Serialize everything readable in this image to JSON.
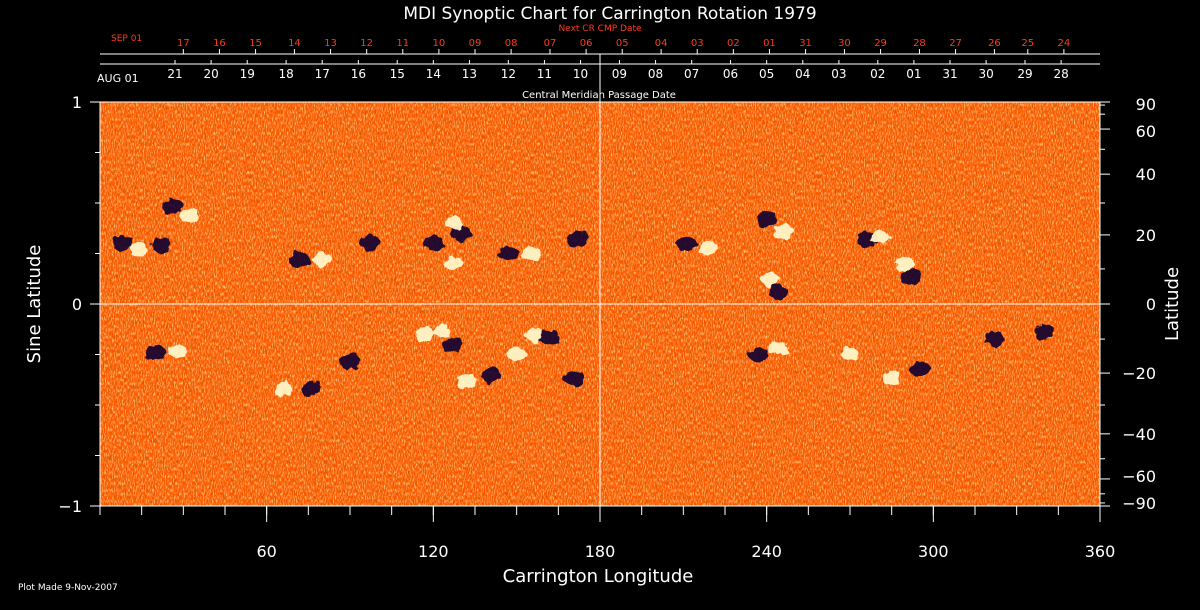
{
  "colors": {
    "background": "#000000",
    "text": "#ffffff",
    "next_dates": "#ff3b1a",
    "map_base": "#ff5a00",
    "positive_polarity": "#fff6c8",
    "negative_polarity": "#0b0630"
  },
  "chart_data": {
    "type": "heatmap",
    "title": "MDI Synoptic Chart for Carrington Rotation 1979",
    "xlabel": "Carrington Longitude",
    "ylabel_left": "Sine Latitude",
    "ylabel_right": "Latitude",
    "top_axis_label": "Central Meridian Passage Date",
    "next_axis_label": "Next CR CMP Date",
    "footer": "Plot Made  9-Nov-2007",
    "xlim": [
      0,
      360
    ],
    "ylim": [
      -1,
      1
    ],
    "x_tick_labels": [
      {
        "value": 60,
        "text": "60"
      },
      {
        "value": 120,
        "text": "120"
      },
      {
        "value": 180,
        "text": "180"
      },
      {
        "value": 240,
        "text": "240"
      },
      {
        "value": 300,
        "text": "300"
      },
      {
        "value": 360,
        "text": "360"
      }
    ],
    "x_minor_ticks": [
      0,
      15,
      30,
      45,
      60,
      75,
      90,
      105,
      120,
      135,
      150,
      165,
      180,
      195,
      210,
      225,
      240,
      255,
      270,
      285,
      300,
      315,
      330,
      345,
      360
    ],
    "y_left_ticks": [
      {
        "value": 1,
        "text": "1"
      },
      {
        "value": 0,
        "text": "0"
      },
      {
        "value": -1,
        "text": "−1"
      }
    ],
    "y_left_minor_ticks": [
      0.75,
      0.5,
      0.25,
      -0.25,
      -0.5,
      -0.75
    ],
    "latitude_ticks": [
      {
        "deg": 90,
        "text": "90"
      },
      {
        "deg": 60,
        "text": "60"
      },
      {
        "deg": 40,
        "text": "40"
      },
      {
        "deg": 20,
        "text": "20"
      },
      {
        "deg": 0,
        "text": "0"
      },
      {
        "deg": -20,
        "text": "−20"
      },
      {
        "deg": -40,
        "text": "−40"
      },
      {
        "deg": -60,
        "text": "−60"
      },
      {
        "deg": -90,
        "text": "−90"
      }
    ],
    "latitude_minor_ticks": [
      80,
      70,
      50,
      30,
      10,
      -10,
      -30,
      -50,
      -70,
      -80
    ],
    "cmp_date_start_label": "AUG 01",
    "cmp_dates": [
      {
        "lon": 27,
        "text": "21"
      },
      {
        "lon": 40,
        "text": "20"
      },
      {
        "lon": 53,
        "text": "19"
      },
      {
        "lon": 67,
        "text": "18"
      },
      {
        "lon": 80,
        "text": "17"
      },
      {
        "lon": 93,
        "text": "16"
      },
      {
        "lon": 107,
        "text": "15"
      },
      {
        "lon": 120,
        "text": "14"
      },
      {
        "lon": 133,
        "text": "13"
      },
      {
        "lon": 147,
        "text": "12"
      },
      {
        "lon": 160,
        "text": "11"
      },
      {
        "lon": 173,
        "text": "10"
      },
      {
        "lon": 187,
        "text": "09"
      },
      {
        "lon": 200,
        "text": "08"
      },
      {
        "lon": 213,
        "text": "07"
      },
      {
        "lon": 227,
        "text": "06"
      },
      {
        "lon": 240,
        "text": "05"
      },
      {
        "lon": 253,
        "text": "04"
      },
      {
        "lon": 266,
        "text": "03"
      },
      {
        "lon": 280,
        "text": "02"
      },
      {
        "lon": 293,
        "text": "01"
      },
      {
        "lon": 306,
        "text": "31"
      },
      {
        "lon": 319,
        "text": "30"
      },
      {
        "lon": 333,
        "text": "29"
      },
      {
        "lon": 346,
        "text": "28"
      }
    ],
    "next_date_start_label": "SEP 01",
    "next_dates": [
      {
        "lon": 30,
        "text": "17"
      },
      {
        "lon": 43,
        "text": "16"
      },
      {
        "lon": 56,
        "text": "15"
      },
      {
        "lon": 70,
        "text": "14"
      },
      {
        "lon": 83,
        "text": "13"
      },
      {
        "lon": 96,
        "text": "12"
      },
      {
        "lon": 109,
        "text": "11"
      },
      {
        "lon": 122,
        "text": "10"
      },
      {
        "lon": 135,
        "text": "09"
      },
      {
        "lon": 148,
        "text": "08"
      },
      {
        "lon": 162,
        "text": "07"
      },
      {
        "lon": 175,
        "text": "06"
      },
      {
        "lon": 188,
        "text": "05"
      },
      {
        "lon": 202,
        "text": "04"
      },
      {
        "lon": 215,
        "text": "03"
      },
      {
        "lon": 228,
        "text": "02"
      },
      {
        "lon": 241,
        "text": "01"
      },
      {
        "lon": 254,
        "text": "31"
      },
      {
        "lon": 268,
        "text": "30"
      },
      {
        "lon": 281,
        "text": "29"
      },
      {
        "lon": 295,
        "text": "28"
      },
      {
        "lon": 308,
        "text": "27"
      },
      {
        "lon": 322,
        "text": "26"
      },
      {
        "lon": 334,
        "text": "25"
      },
      {
        "lon": 347,
        "text": "24"
      }
    ],
    "features": [
      {
        "lon": 8,
        "sinlat": 0.3,
        "polarity": "negative"
      },
      {
        "lon": 14,
        "sinlat": 0.27,
        "polarity": "positive"
      },
      {
        "lon": 26,
        "sinlat": 0.48,
        "polarity": "negative"
      },
      {
        "lon": 32,
        "sinlat": 0.44,
        "polarity": "positive"
      },
      {
        "lon": 22,
        "sinlat": 0.29,
        "polarity": "negative"
      },
      {
        "lon": 72,
        "sinlat": 0.22,
        "polarity": "negative"
      },
      {
        "lon": 80,
        "sinlat": 0.22,
        "polarity": "positive"
      },
      {
        "lon": 97,
        "sinlat": 0.3,
        "polarity": "negative"
      },
      {
        "lon": 130,
        "sinlat": 0.35,
        "polarity": "negative"
      },
      {
        "lon": 128,
        "sinlat": 0.4,
        "polarity": "positive"
      },
      {
        "lon": 120,
        "sinlat": 0.3,
        "polarity": "negative"
      },
      {
        "lon": 127,
        "sinlat": 0.2,
        "polarity": "positive"
      },
      {
        "lon": 155,
        "sinlat": 0.25,
        "polarity": "positive"
      },
      {
        "lon": 147,
        "sinlat": 0.25,
        "polarity": "negative"
      },
      {
        "lon": 172,
        "sinlat": 0.32,
        "polarity": "negative"
      },
      {
        "lon": 20,
        "sinlat": -0.24,
        "polarity": "negative"
      },
      {
        "lon": 28,
        "sinlat": -0.23,
        "polarity": "positive"
      },
      {
        "lon": 66,
        "sinlat": -0.42,
        "polarity": "positive"
      },
      {
        "lon": 76,
        "sinlat": -0.42,
        "polarity": "negative"
      },
      {
        "lon": 90,
        "sinlat": -0.28,
        "polarity": "negative"
      },
      {
        "lon": 117,
        "sinlat": -0.15,
        "polarity": "positive"
      },
      {
        "lon": 123,
        "sinlat": -0.13,
        "polarity": "positive"
      },
      {
        "lon": 127,
        "sinlat": -0.2,
        "polarity": "negative"
      },
      {
        "lon": 132,
        "sinlat": -0.38,
        "polarity": "positive"
      },
      {
        "lon": 141,
        "sinlat": -0.35,
        "polarity": "negative"
      },
      {
        "lon": 150,
        "sinlat": -0.25,
        "polarity": "positive"
      },
      {
        "lon": 162,
        "sinlat": -0.17,
        "polarity": "negative"
      },
      {
        "lon": 156,
        "sinlat": -0.16,
        "polarity": "positive"
      },
      {
        "lon": 171,
        "sinlat": -0.37,
        "polarity": "negative"
      },
      {
        "lon": 211,
        "sinlat": 0.3,
        "polarity": "negative"
      },
      {
        "lon": 219,
        "sinlat": 0.28,
        "polarity": "positive"
      },
      {
        "lon": 240,
        "sinlat": 0.42,
        "polarity": "negative"
      },
      {
        "lon": 246,
        "sinlat": 0.36,
        "polarity": "positive"
      },
      {
        "lon": 241,
        "sinlat": 0.12,
        "polarity": "positive"
      },
      {
        "lon": 244,
        "sinlat": 0.06,
        "polarity": "negative"
      },
      {
        "lon": 276,
        "sinlat": 0.32,
        "polarity": "negative"
      },
      {
        "lon": 281,
        "sinlat": 0.33,
        "polarity": "positive"
      },
      {
        "lon": 292,
        "sinlat": 0.13,
        "polarity": "negative"
      },
      {
        "lon": 290,
        "sinlat": 0.2,
        "polarity": "positive"
      },
      {
        "lon": 237,
        "sinlat": -0.25,
        "polarity": "negative"
      },
      {
        "lon": 244,
        "sinlat": -0.22,
        "polarity": "positive"
      },
      {
        "lon": 285,
        "sinlat": -0.37,
        "polarity": "positive"
      },
      {
        "lon": 295,
        "sinlat": -0.32,
        "polarity": "negative"
      },
      {
        "lon": 270,
        "sinlat": -0.25,
        "polarity": "positive"
      },
      {
        "lon": 322,
        "sinlat": -0.17,
        "polarity": "negative"
      },
      {
        "lon": 340,
        "sinlat": -0.14,
        "polarity": "negative"
      }
    ]
  }
}
